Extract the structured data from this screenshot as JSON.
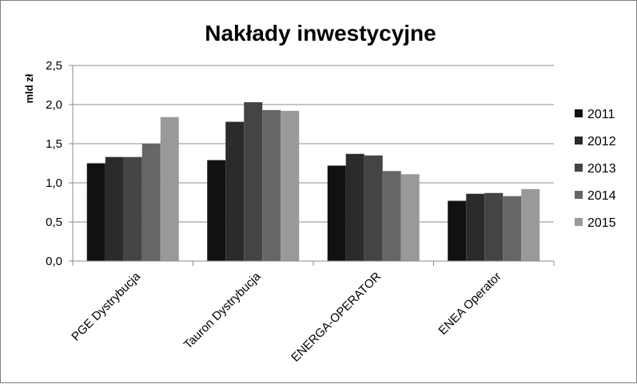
{
  "chart_data": {
    "type": "bar",
    "title": "Nakłady inwestycyjne",
    "ylabel": "mld zł",
    "xlabel": "",
    "ylim": [
      0,
      2.5
    ],
    "yticks": [
      "0,0",
      "0,5",
      "1,0",
      "1,5",
      "2,0",
      "2,5"
    ],
    "yticks_values": [
      0,
      0.5,
      1.0,
      1.5,
      2.0,
      2.5
    ],
    "grid": true,
    "legend_position": "right",
    "categories": [
      "PGE Dystrybucja",
      "Tauron Dystrybucja",
      "ENERGA-OPERATOR",
      "ENEA Operator"
    ],
    "series": [
      {
        "name": "2011",
        "color": "#111111",
        "values": [
          1.25,
          1.29,
          1.22,
          0.77
        ]
      },
      {
        "name": "2012",
        "color": "#2b2b2b",
        "values": [
          1.33,
          1.78,
          1.37,
          0.86
        ]
      },
      {
        "name": "2013",
        "color": "#444444",
        "values": [
          1.33,
          2.03,
          1.35,
          0.87
        ]
      },
      {
        "name": "2014",
        "color": "#666666",
        "values": [
          1.5,
          1.93,
          1.15,
          0.83
        ]
      },
      {
        "name": "2015",
        "color": "#999999",
        "values": [
          1.84,
          1.92,
          1.11,
          0.92
        ]
      }
    ]
  }
}
